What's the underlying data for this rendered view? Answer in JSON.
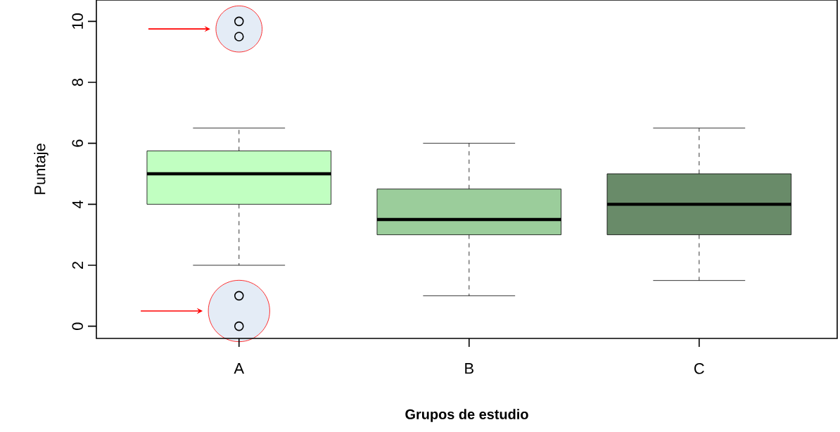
{
  "chart_data": {
    "type": "box",
    "xlabel": "Grupos de estudio",
    "ylabel": "Puntaje",
    "categories": [
      "A",
      "B",
      "C"
    ],
    "colors": [
      "#c1ffc1",
      "#9bcd9b",
      "#698b69"
    ],
    "boxes": [
      {
        "low": 2,
        "q1": 4,
        "median": 5,
        "q3": 5.75,
        "high": 6.5,
        "outliers": [
          10,
          9.5,
          1,
          0
        ]
      },
      {
        "low": 1,
        "q1": 3,
        "median": 3.5,
        "q3": 4.5,
        "high": 6
      },
      {
        "low": 1.5,
        "q1": 3,
        "median": 4,
        "q3": 5,
        "high": 6.5
      }
    ],
    "ylim": [
      -0.4,
      10.7
    ],
    "yticks": [
      0,
      2,
      4,
      6,
      8,
      10
    ],
    "grid": false
  }
}
